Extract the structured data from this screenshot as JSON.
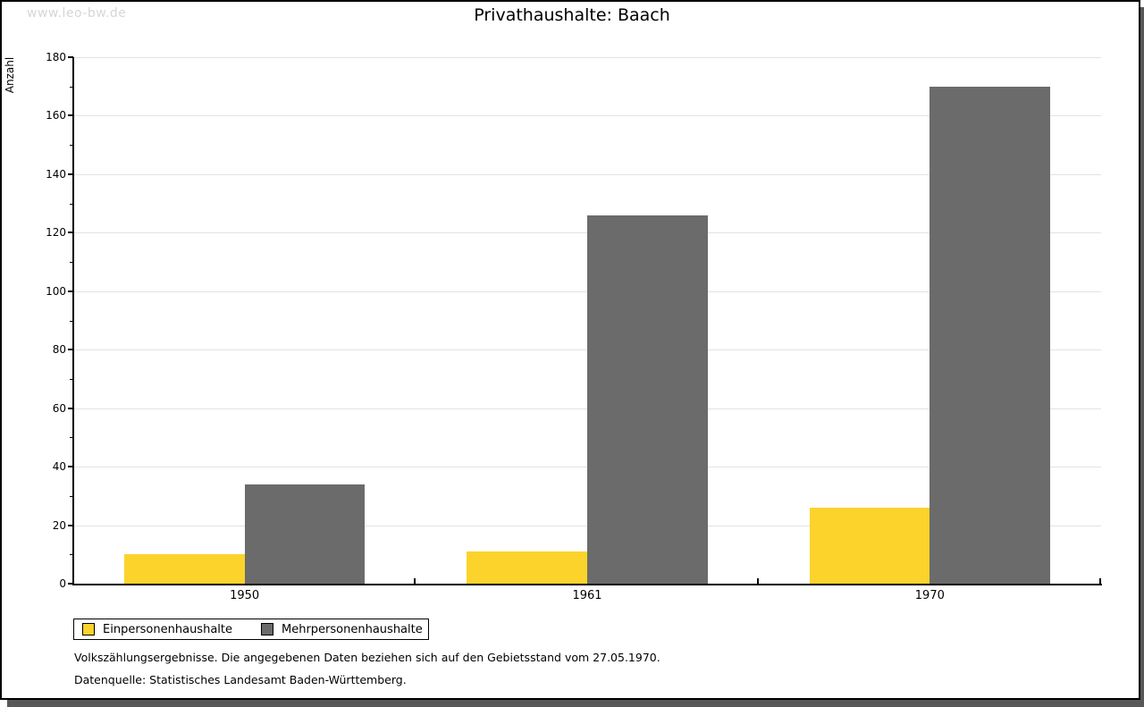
{
  "watermark": "www.leo-bw.de",
  "title": "Privathaushalte: Baach",
  "footnotes": [
    "Volkszählungsergebnisse. Die angegebenen Daten beziehen sich auf den Gebietsstand vom 27.05.1970.",
    "Datenquelle: Statistisches Landesamt Baden-Württemberg."
  ],
  "colors": {
    "series1": "#fcd32b",
    "series2": "#6b6b6b",
    "gridline": "#e2e2e2",
    "axis": "#000000",
    "shadow": "#585858",
    "watermark": "#d6d6d6"
  },
  "chart_data": {
    "type": "bar",
    "categories": [
      "1950",
      "1961",
      "1970"
    ],
    "series": [
      {
        "name": "Einpersonenhaushalte",
        "color": "#fcd32b",
        "values": [
          10,
          11,
          26
        ]
      },
      {
        "name": "Mehrpersonenhaushalte",
        "color": "#6b6b6b",
        "values": [
          34,
          126,
          170
        ]
      }
    ],
    "title": "Privathaushalte: Baach",
    "xlabel": "",
    "ylabel": "Anzahl",
    "ylim": [
      0,
      180
    ],
    "ytick_major": 20,
    "ytick_minor": 10,
    "grid": true,
    "legend_position": "bottom-left"
  }
}
